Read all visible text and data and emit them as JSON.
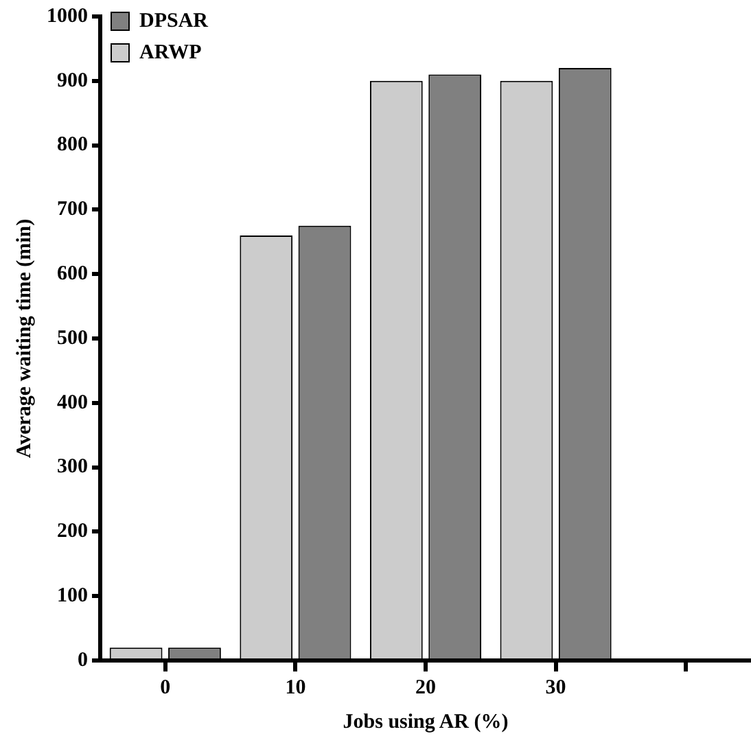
{
  "chart_data": {
    "type": "bar",
    "xlabel": "Jobs using AR (%)",
    "ylabel": "Average waiting time (min)",
    "categories": [
      "0",
      "10",
      "20",
      "30",
      null
    ],
    "series": [
      {
        "name": "ARWP",
        "color": "#cccccc",
        "values": [
          20,
          660,
          900,
          900,
          null
        ]
      },
      {
        "name": "DPSAR",
        "color": "#808080",
        "values": [
          20,
          675,
          910,
          920,
          null
        ]
      }
    ],
    "ylim": [
      0,
      1000
    ],
    "yticks": [
      0,
      100,
      200,
      300,
      400,
      500,
      600,
      700,
      800,
      900,
      1000
    ],
    "grid": false,
    "legend": "top left"
  }
}
